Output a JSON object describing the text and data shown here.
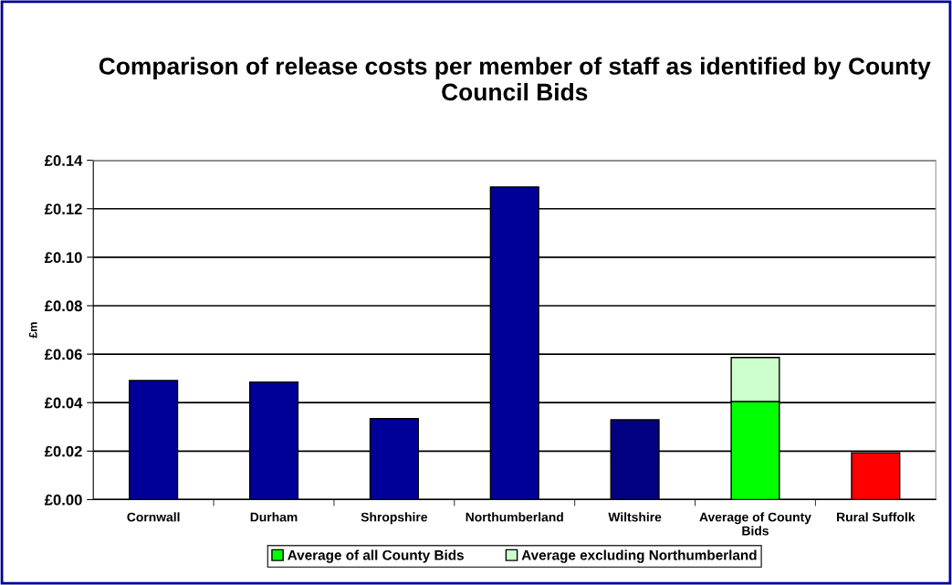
{
  "chart_data": {
    "type": "bar",
    "title": "Comparison of release costs per member of staff as identified by County Council Bids",
    "ylabel": "£m",
    "categories": [
      "Cornwall",
      "Durham",
      "Shropshire",
      "Northumberland",
      "Wiltshire",
      "Average of County\nBids",
      "Rural Suffolk"
    ],
    "stacked": true,
    "series": [
      {
        "colors": [
          "#000099",
          "#000099",
          "#000099",
          "#000099",
          "#000080",
          "#000099",
          "#ff0000"
        ],
        "values": [
          0.0491,
          0.0485,
          0.0334,
          0.129,
          0.0329,
          null,
          0.0193
        ]
      },
      {
        "name": "Average of all County Bids",
        "color": "#00ff00",
        "values": [
          null,
          null,
          null,
          null,
          null,
          0.0405,
          null
        ]
      },
      {
        "name": "Average excluding Northumberland",
        "color": "#ccffcc",
        "values": [
          null,
          null,
          null,
          null,
          null,
          0.0181,
          null
        ]
      }
    ],
    "ylim": [
      0,
      0.14
    ],
    "yticks": [
      {
        "value": 0,
        "label": "£0.00"
      },
      {
        "value": 0.02,
        "label": "£0.02"
      },
      {
        "value": 0.04,
        "label": "£0.04"
      },
      {
        "value": 0.06,
        "label": "£0.06"
      },
      {
        "value": 0.08,
        "label": "£0.08"
      },
      {
        "value": 0.1,
        "label": "£0.10"
      },
      {
        "value": 0.12,
        "label": "£0.12"
      },
      {
        "value": 0.14,
        "label": "£0.14"
      }
    ],
    "grid": "y",
    "legend": "bottom"
  }
}
